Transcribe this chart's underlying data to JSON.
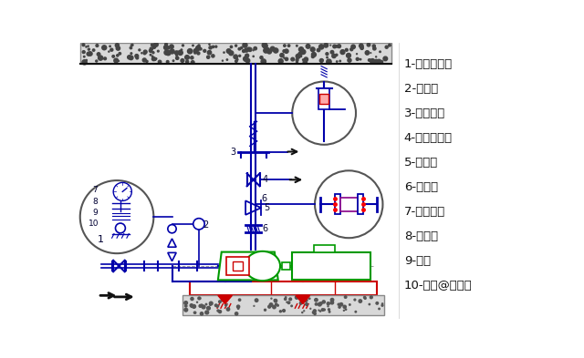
{
  "legend_items": [
    "1-蝶阀或闸阀",
    "2-压力表",
    "3-弹性吊架",
    "4-蝶阀或闸阀",
    "5-止回阀",
    "6-软接头",
    "7-压力表盘",
    "8-旋塞阀",
    "9-钢管",
    "10-头条@硕硕通"
  ],
  "bg_color": "#ffffff",
  "blue": "#0000aa",
  "green": "#009900",
  "red": "#cc0000",
  "dark": "#111111",
  "gray": "#999999",
  "concrete_fill": "#d8d8d8",
  "concrete_edge": "#888888"
}
